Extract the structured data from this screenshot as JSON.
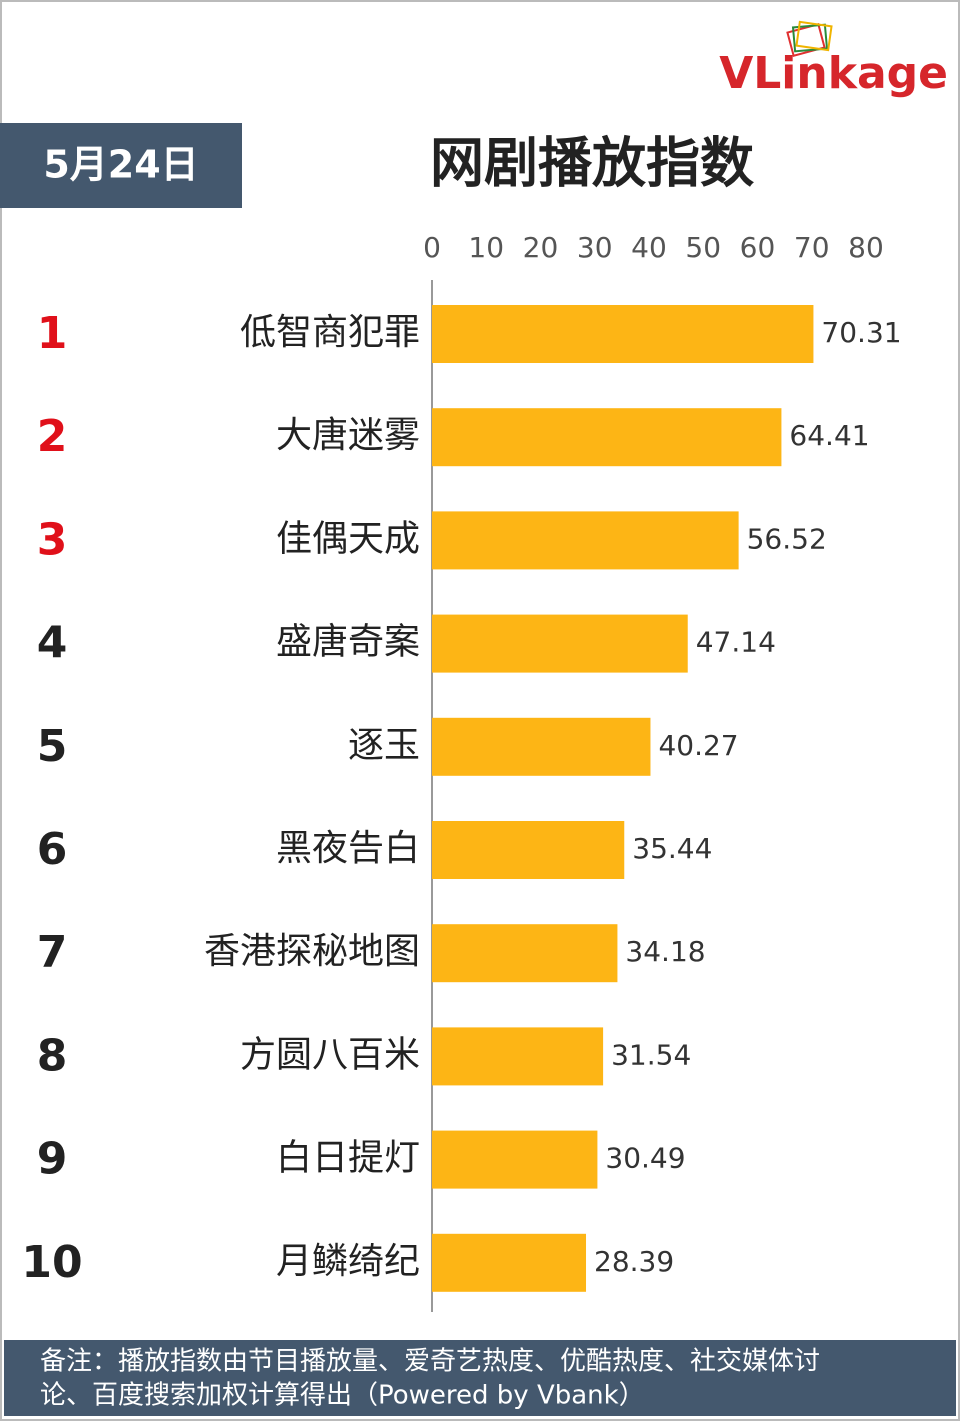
{
  "chart_data": {
    "type": "bar",
    "orientation": "horizontal",
    "title": "网剧播放指数",
    "date": "5月24日",
    "brand": "VLinkage",
    "ranks": [
      1,
      2,
      3,
      4,
      5,
      6,
      7,
      8,
      9,
      10
    ],
    "categories": [
      "低智商犯罪",
      "大唐迷雾",
      "佳偶天成",
      "盛唐奇案",
      "逐玉",
      "黑夜告白",
      "香港探秘地图",
      "方圆八百米",
      "白日提灯",
      "月鳞绮纪"
    ],
    "values": [
      70.31,
      64.41,
      56.52,
      47.14,
      40.27,
      35.44,
      34.18,
      31.54,
      30.49,
      28.39
    ],
    "value_labels": [
      "70.31",
      "64.41",
      "56.52",
      "47.14",
      "40.27",
      "35.44",
      "34.18",
      "31.54",
      "30.49",
      "28.39"
    ],
    "color": "#fdb515",
    "xlim": [
      0,
      80
    ],
    "xticks": [
      0,
      10,
      20,
      30,
      40,
      50,
      60,
      70,
      80
    ],
    "note": [
      "备注：播放指数由节目播放量、爱奇艺热度、优酷热度、社交媒体讨",
      "论、百度搜索加权计算得出（Powered by Vbank）"
    ]
  }
}
